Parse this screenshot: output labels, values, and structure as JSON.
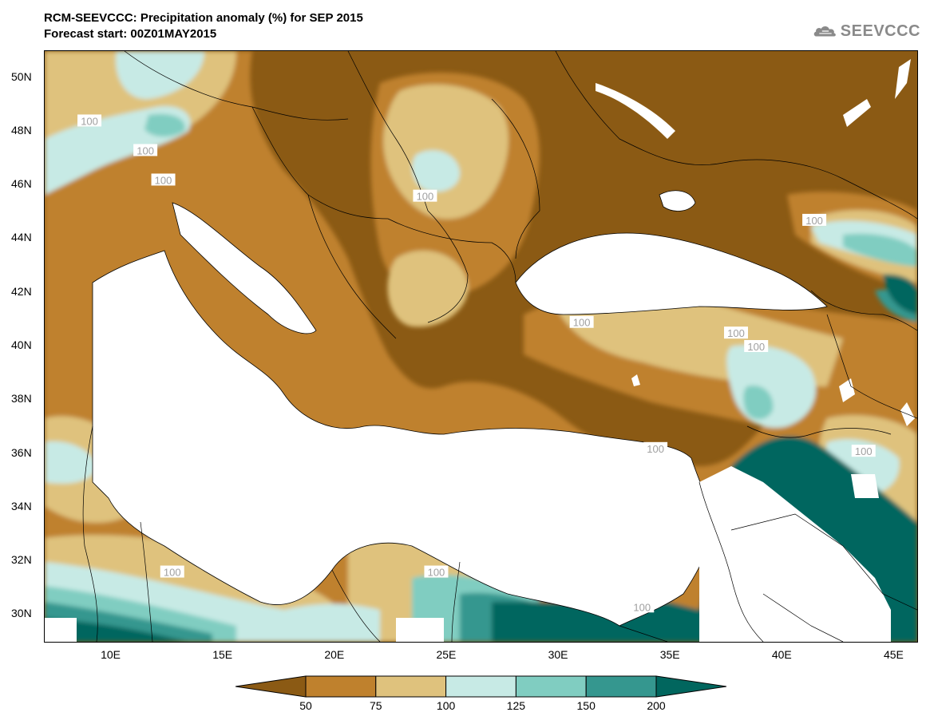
{
  "header": {
    "title": "RCM-SEEVCCC: Precipitation anomaly (%) for SEP 2015",
    "subtitle": "Forecast start: 00Z01MAY2015",
    "logo_text": "SEEVCCC",
    "logo_icon": "cloud-icon"
  },
  "map": {
    "type": "filled-contour-map",
    "variable": "Precipitation anomaly (%)",
    "lon_range": [
      7,
      46
    ],
    "lat_range": [
      29,
      51
    ],
    "lon_ticks": [
      {
        "value": 10,
        "label": "10E"
      },
      {
        "value": 15,
        "label": "15E"
      },
      {
        "value": 20,
        "label": "20E"
      },
      {
        "value": 25,
        "label": "25E"
      },
      {
        "value": 30,
        "label": "30E"
      },
      {
        "value": 35,
        "label": "35E"
      },
      {
        "value": 40,
        "label": "40E"
      },
      {
        "value": 45,
        "label": "45E"
      }
    ],
    "lat_ticks": [
      {
        "value": 50,
        "label": "50N"
      },
      {
        "value": 48,
        "label": "48N"
      },
      {
        "value": 46,
        "label": "46N"
      },
      {
        "value": 44,
        "label": "44N"
      },
      {
        "value": 42,
        "label": "42N"
      },
      {
        "value": 40,
        "label": "40N"
      },
      {
        "value": 38,
        "label": "38N"
      },
      {
        "value": 36,
        "label": "36N"
      },
      {
        "value": 34,
        "label": "34N"
      },
      {
        "value": 32,
        "label": "32N"
      },
      {
        "value": 30,
        "label": "30N"
      }
    ],
    "contour_label": "100",
    "contour_label_positions": [
      {
        "lon": 9.0,
        "lat": 48.4
      },
      {
        "lon": 11.5,
        "lat": 47.3
      },
      {
        "lon": 12.3,
        "lat": 46.2
      },
      {
        "lon": 24.0,
        "lat": 45.6
      },
      {
        "lon": 41.4,
        "lat": 44.7
      },
      {
        "lon": 31.0,
        "lat": 40.9
      },
      {
        "lon": 37.9,
        "lat": 40.5
      },
      {
        "lon": 38.8,
        "lat": 40.0
      },
      {
        "lon": 34.3,
        "lat": 36.2
      },
      {
        "lon": 43.6,
        "lat": 36.1
      },
      {
        "lon": 12.7,
        "lat": 31.6
      },
      {
        "lon": 24.5,
        "lat": 31.6
      },
      {
        "lon": 33.7,
        "lat": 30.3
      }
    ]
  },
  "colorbar": {
    "levels": [
      "50",
      "75",
      "100",
      "125",
      "150",
      "200"
    ],
    "colors": {
      "below_50": "#8b5a14",
      "50_75": "#bf812d",
      "75_100": "#dfc27d",
      "100_125": "#c7eae5",
      "125_150": "#80cdc1",
      "150_200": "#35978f",
      "above_200": "#01665e"
    }
  },
  "chart_data": {
    "type": "heatmap",
    "title": "RCM-SEEVCCC: Precipitation anomaly (%) for SEP 2015",
    "subtitle": "Forecast start: 00Z01MAY2015",
    "xlabel": "",
    "ylabel": "",
    "xlim": [
      7,
      46
    ],
    "ylim": [
      29,
      51
    ],
    "color_levels": [
      50,
      75,
      100,
      125,
      150,
      200
    ],
    "grid": false
  }
}
